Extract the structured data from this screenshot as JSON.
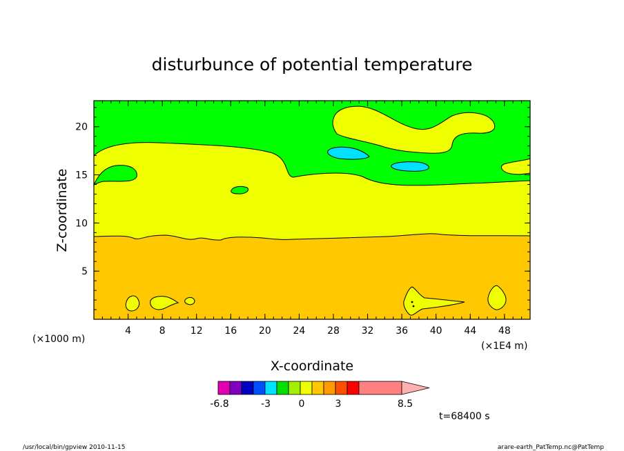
{
  "chart_data": {
    "type": "contour",
    "title": "disturbunce of potential temperature",
    "xlabel": "X-coordinate",
    "ylabel": "Z-coordinate",
    "x_unit": "(×1E4 m)",
    "y_unit": "(×1000 m)",
    "xlim": [
      0,
      51
    ],
    "ylim": [
      0,
      22.7
    ],
    "xticks": [
      4,
      8,
      12,
      16,
      20,
      24,
      28,
      32,
      36,
      40,
      44,
      48
    ],
    "yticks": [
      5,
      10,
      15,
      20
    ],
    "grid": false,
    "colorbar": {
      "labels": [
        "-6.8",
        "-3",
        "0",
        "3",
        "8.5"
      ],
      "colors": [
        "#e000b0",
        "#8000c0",
        "#0000c0",
        "#0050ff",
        "#00e0ff",
        "#00e000",
        "#a0f000",
        "#f0ff00",
        "#ffc800",
        "#ff9a00",
        "#ff5000",
        "#ff0000",
        "#ff8080"
      ],
      "extend": "max"
    },
    "regions": [
      {
        "value_band": "lower orange layer",
        "approx_top_z": 8.7
      },
      {
        "value_band": "yellow layer",
        "approx_top_z": 18.0
      },
      {
        "value_band": "green upper layer",
        "approx_top_z": 22.7
      }
    ],
    "annotation_time": "t=68400 s"
  },
  "footer": {
    "left": "/usr/local/bin/gpview   2010-11-15",
    "right": "arare-earth_PatTemp.nc@PatTemp"
  }
}
